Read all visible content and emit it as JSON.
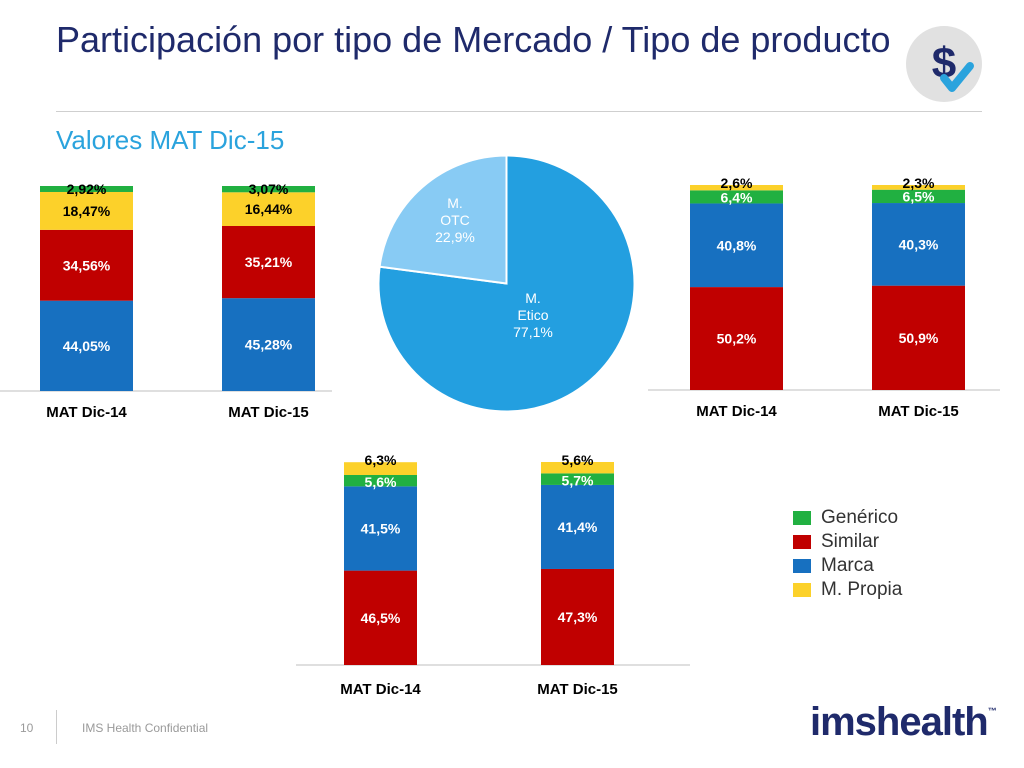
{
  "slide": {
    "title": "Participación por tipo de Mercado / Tipo de producto",
    "subtitle": "Valores MAT Dic-15",
    "page_number": "10",
    "footer": "IMS Health Confidential",
    "brand": "imshealth",
    "brand_tm": "™",
    "icon_symbol": "$",
    "icon_name": "dollar-check-icon"
  },
  "legend": [
    {
      "label": "Genérico",
      "color": "#21b041"
    },
    {
      "label": "Similar",
      "color": "#c00000"
    },
    {
      "label": "Marca",
      "color": "#1770c0"
    },
    {
      "label": "M. Propia",
      "color": "#fcd12a"
    }
  ],
  "chart_data": [
    {
      "type": "bar",
      "stacked": true,
      "categories": [
        "MAT Dic-14",
        "MAT Dic-15"
      ],
      "series": [
        {
          "name": "Marca",
          "color": "#1770c0",
          "values": [
            44.05,
            45.28
          ],
          "labels": [
            "44,05%",
            "45,28%"
          ]
        },
        {
          "name": "Similar",
          "color": "#c00000",
          "values": [
            34.56,
            35.21
          ],
          "labels": [
            "34,56%",
            "35,21%"
          ]
        },
        {
          "name": "M. Propia",
          "color": "#fcd12a",
          "values": [
            18.47,
            16.44
          ],
          "labels": [
            "18,47%",
            "16,44%"
          ]
        },
        {
          "name": "Genérico",
          "color": "#21b041",
          "values": [
            2.92,
            3.07
          ],
          "labels": [
            "2,92%",
            "3,07%"
          ]
        }
      ],
      "ylim": [
        0,
        100
      ]
    },
    {
      "type": "pie",
      "slices": [
        {
          "label": "M. Etico",
          "value": 77.1,
          "value_label": "77,1%",
          "color": "#239fe0"
        },
        {
          "label": "M. OTC",
          "value": 22.9,
          "value_label": "22,9%",
          "color": "#88cbf4"
        }
      ]
    },
    {
      "type": "bar",
      "stacked": true,
      "categories": [
        "MAT Dic-14",
        "MAT Dic-15"
      ],
      "series": [
        {
          "name": "Similar",
          "color": "#c00000",
          "values": [
            50.2,
            50.9
          ],
          "labels": [
            "50,2%",
            "50,9%"
          ]
        },
        {
          "name": "Marca",
          "color": "#1770c0",
          "values": [
            40.8,
            40.3
          ],
          "labels": [
            "40,8%",
            "40,3%"
          ]
        },
        {
          "name": "Genérico",
          "color": "#21b041",
          "values": [
            6.4,
            6.5
          ],
          "labels": [
            "6,4%",
            "6,5%"
          ]
        },
        {
          "name": "M. Propia",
          "color": "#fcd12a",
          "values": [
            2.6,
            2.3
          ],
          "labels": [
            "2,6%",
            "2,3%"
          ]
        }
      ],
      "ylim": [
        0,
        100
      ]
    },
    {
      "type": "bar",
      "stacked": true,
      "categories": [
        "MAT Dic-14",
        "MAT Dic-15"
      ],
      "series": [
        {
          "name": "Similar",
          "color": "#c00000",
          "values": [
            46.5,
            47.3
          ],
          "labels": [
            "46,5%",
            "47,3%"
          ]
        },
        {
          "name": "Marca",
          "color": "#1770c0",
          "values": [
            41.5,
            41.4
          ],
          "labels": [
            "41,5%",
            "41,4%"
          ]
        },
        {
          "name": "Genérico",
          "color": "#21b041",
          "values": [
            5.6,
            5.7
          ],
          "labels": [
            "5,6%",
            "5,7%"
          ]
        },
        {
          "name": "M. Propia",
          "color": "#fcd12a",
          "values": [
            6.3,
            5.6
          ],
          "labels": [
            "6,3%",
            "5,6%"
          ]
        }
      ],
      "ylim": [
        0,
        100
      ]
    }
  ]
}
